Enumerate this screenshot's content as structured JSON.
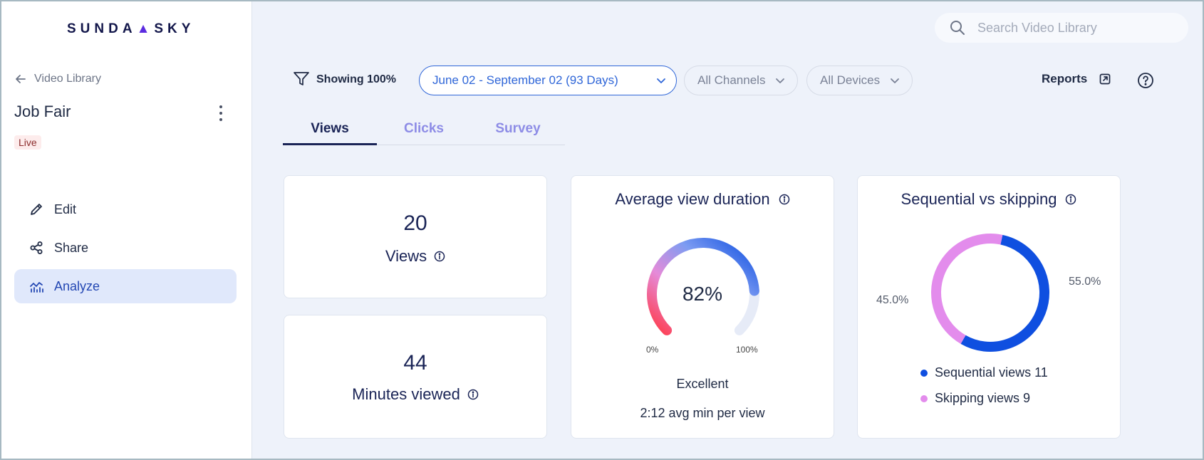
{
  "brand": {
    "name_left": "SUNDA",
    "name_right": "SKY"
  },
  "sidebar": {
    "back_label": "Video Library",
    "video_title": "Job Fair",
    "status_badge": "Live",
    "nav": [
      {
        "label": "Edit",
        "icon": "pencil-icon"
      },
      {
        "label": "Share",
        "icon": "share-icon"
      },
      {
        "label": "Analyze",
        "icon": "analytics-icon",
        "active": true
      }
    ]
  },
  "search": {
    "placeholder": "Search Video Library"
  },
  "filters": {
    "showing": "Showing 100%",
    "date_range": "June 02 - September 02 (93 Days)",
    "channels": "All Channels",
    "devices": "All Devices"
  },
  "header": {
    "reports_label": "Reports"
  },
  "tabs": [
    {
      "label": "Views",
      "active": true
    },
    {
      "label": "Clicks"
    },
    {
      "label": "Survey"
    }
  ],
  "stats": {
    "views": {
      "value": "20",
      "label": "Views"
    },
    "minutes": {
      "value": "44",
      "label": "Minutes viewed"
    }
  },
  "duration_card": {
    "title": "Average view duration",
    "value_text": "82%",
    "value_fraction": 0.82,
    "min_label": "0%",
    "max_label": "100%",
    "rating": "Excellent",
    "avg_text": "2:12 avg min per view"
  },
  "sequential_card": {
    "title": "Sequential vs skipping",
    "left_pct": "45.0%",
    "right_pct": "55.0%",
    "legend": [
      {
        "label": "Sequential views 11",
        "color": "#0f4fe0"
      },
      {
        "label": "Skipping views 9",
        "color": "#e38cec"
      }
    ]
  },
  "chart_data": {
    "type": "pie",
    "categories": [
      "Sequential views",
      "Skipping views"
    ],
    "values": [
      11,
      9
    ],
    "percentages": [
      55.0,
      45.0
    ],
    "title": "Sequential vs skipping",
    "colors": [
      "#0f4fe0",
      "#e38cec"
    ]
  },
  "colors": {
    "accent": "#2f66d8",
    "navy": "#1a2456",
    "sequential": "#0f4fe0",
    "skipping": "#e38cec"
  }
}
